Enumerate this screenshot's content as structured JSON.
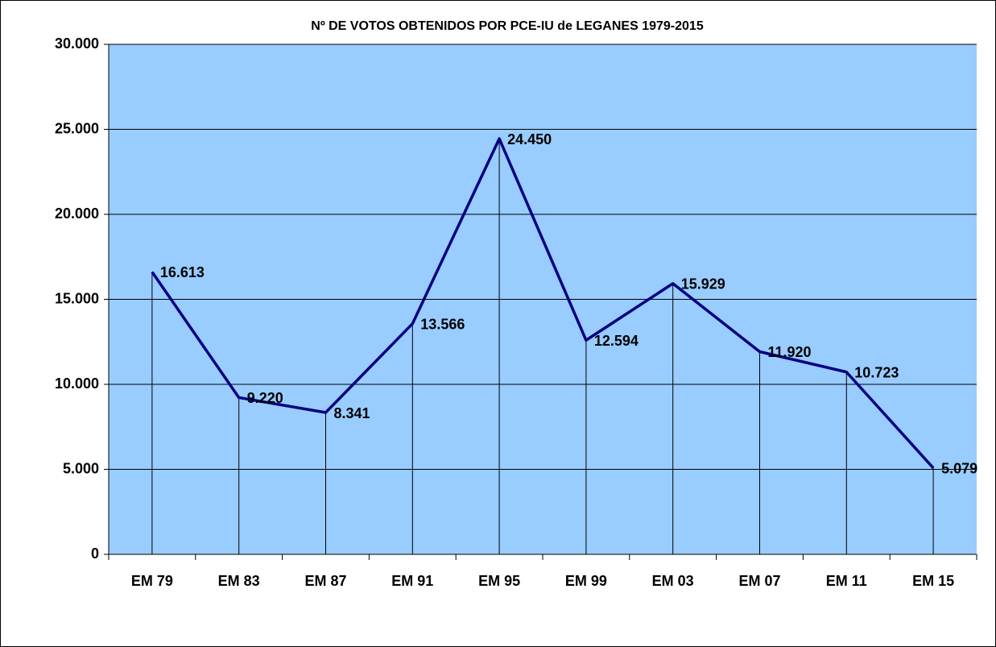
{
  "chart_data": {
    "type": "line",
    "title": "Nº DE VOTOS OBTENIDOS POR PCE-IU de LEGANES 1979-2015",
    "categories": [
      "EM 79",
      "EM 83",
      "EM 87",
      "EM 91",
      "EM 95",
      "EM 99",
      "EM 03",
      "EM 07",
      "EM 11",
      "EM 15"
    ],
    "values": [
      16613,
      9220,
      8341,
      13566,
      24450,
      12594,
      15929,
      11920,
      10723,
      5079
    ],
    "value_labels": [
      "16.613",
      "9.220",
      "8.341",
      "13.566",
      "24.450",
      "12.594",
      "15.929",
      "11.920",
      "10.723",
      "5.079"
    ],
    "color": "#000080",
    "ylim": [
      0,
      30000
    ],
    "yticks": [
      0,
      {
        "value": 5000,
        "label": "5.000"
      },
      {
        "value": 10000,
        "label": "10.000"
      },
      {
        "value": 15000,
        "label": "15.000"
      },
      {
        "value": 20000,
        "label": "20.000"
      },
      {
        "value": 25000,
        "label": "25.000"
      },
      {
        "value": 30000,
        "label": "30.000"
      }
    ],
    "grid": true,
    "drop_lines": true
  }
}
